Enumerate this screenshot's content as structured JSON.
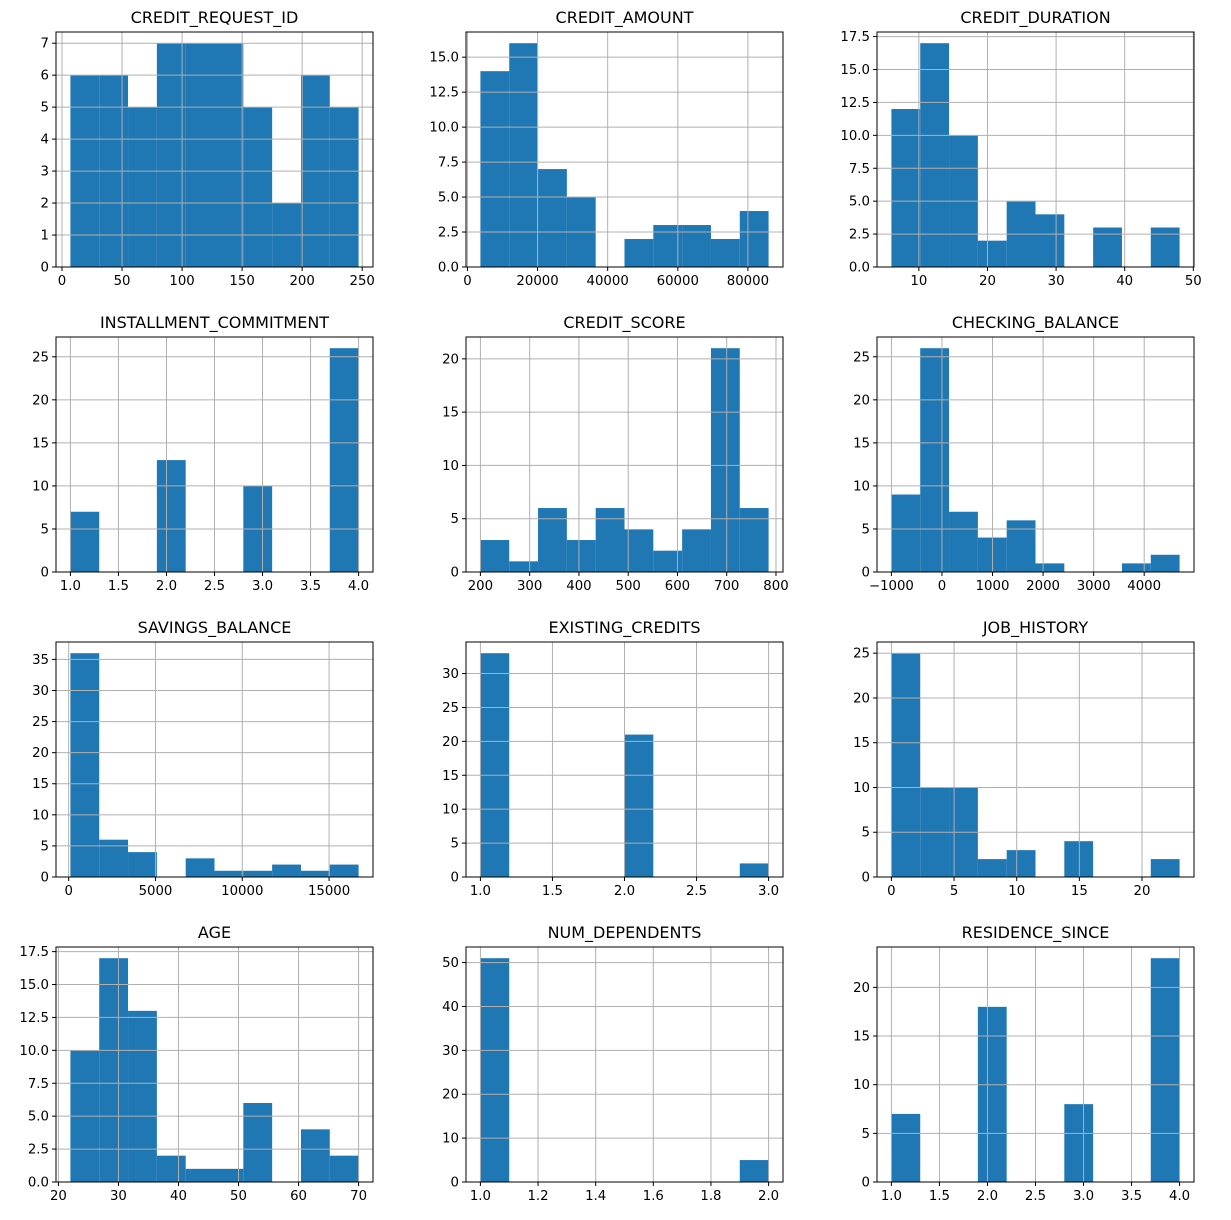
{
  "figure": {
    "background": "#ffffff",
    "bar_color": "#1f77b4",
    "grid_color": "#b0b0b0",
    "spine_color": "#000000",
    "grid_on": true,
    "layout": {
      "rows": 4,
      "cols": 3
    },
    "total_records": 56
  },
  "chart_data": [
    {
      "type": "bar",
      "subtype": "histogram",
      "title": "CREDIT_REQUEST_ID",
      "bin_edges": [
        7,
        31,
        55,
        79,
        103,
        127,
        151,
        175,
        199,
        223,
        247
      ],
      "counts": [
        6,
        6,
        5,
        7,
        7,
        7,
        5,
        2,
        6,
        5
      ],
      "x_ticks": [
        0,
        50,
        100,
        150,
        200,
        250
      ],
      "x_tick_labels": [
        "0",
        "50",
        "100",
        "150",
        "200",
        "250"
      ],
      "y_ticks": [
        0,
        1,
        2,
        3,
        4,
        5,
        6,
        7
      ],
      "y_tick_labels": [
        "0",
        "1",
        "2",
        "3",
        "4",
        "5",
        "6",
        "7"
      ],
      "xlim": [
        -5,
        259
      ],
      "ylim": [
        0,
        7.35
      ]
    },
    {
      "type": "bar",
      "subtype": "histogram",
      "title": "CREDIT_AMOUNT",
      "bin_edges": [
        3700,
        11920,
        20140,
        28360,
        36580,
        44800,
        53020,
        61240,
        69460,
        77680,
        85900
      ],
      "counts": [
        14,
        16,
        7,
        5,
        0,
        2,
        3,
        3,
        2,
        4
      ],
      "x_ticks": [
        0,
        20000,
        40000,
        60000,
        80000
      ],
      "x_tick_labels": [
        "0",
        "20000",
        "40000",
        "60000",
        "80000"
      ],
      "y_ticks": [
        0,
        2.5,
        5,
        7.5,
        10,
        12.5,
        15
      ],
      "y_tick_labels": [
        "0.0",
        "2.5",
        "5.0",
        "7.5",
        "10.0",
        "12.5",
        "15.0"
      ],
      "xlim": [
        -410,
        90010
      ],
      "ylim": [
        0,
        16.8
      ]
    },
    {
      "type": "bar",
      "subtype": "histogram",
      "title": "CREDIT_DURATION",
      "bin_edges": [
        6,
        10.2,
        14.4,
        18.6,
        22.8,
        27,
        31.2,
        35.4,
        39.6,
        43.8,
        48
      ],
      "counts": [
        12,
        17,
        10,
        2,
        5,
        4,
        0,
        3,
        0,
        3
      ],
      "x_ticks": [
        10,
        20,
        30,
        40,
        50
      ],
      "x_tick_labels": [
        "10",
        "20",
        "30",
        "40",
        "50"
      ],
      "y_ticks": [
        0,
        2.5,
        5,
        7.5,
        10,
        12.5,
        15,
        17.5
      ],
      "y_tick_labels": [
        "0.0",
        "2.5",
        "5.0",
        "7.5",
        "10.0",
        "12.5",
        "15.0",
        "17.5"
      ],
      "xlim": [
        3.9,
        50.1
      ],
      "ylim": [
        0,
        17.85
      ]
    },
    {
      "type": "bar",
      "subtype": "histogram",
      "title": "INSTALLMENT_COMMITMENT",
      "bin_edges": [
        1,
        1.3,
        1.6,
        1.9,
        2.2,
        2.5,
        2.8,
        3.1,
        3.4,
        3.7,
        4
      ],
      "counts": [
        7,
        0,
        0,
        13,
        0,
        0,
        10,
        0,
        0,
        26
      ],
      "x_ticks": [
        1,
        1.5,
        2,
        2.5,
        3,
        3.5,
        4
      ],
      "x_tick_labels": [
        "1.0",
        "1.5",
        "2.0",
        "2.5",
        "3.0",
        "3.5",
        "4.0"
      ],
      "y_ticks": [
        0,
        5,
        10,
        15,
        20,
        25
      ],
      "y_tick_labels": [
        "0",
        "5",
        "10",
        "15",
        "20",
        "25"
      ],
      "xlim": [
        0.85,
        4.15
      ],
      "ylim": [
        0,
        27.3
      ]
    },
    {
      "type": "bar",
      "subtype": "histogram",
      "title": "CREDIT_SCORE",
      "bin_edges": [
        200,
        258.5,
        317,
        375.5,
        434,
        492.5,
        551,
        609.5,
        668,
        726.5,
        785
      ],
      "counts": [
        3,
        1,
        6,
        3,
        6,
        4,
        2,
        4,
        21,
        6
      ],
      "x_ticks": [
        200,
        300,
        400,
        500,
        600,
        700,
        800
      ],
      "x_tick_labels": [
        "200",
        "300",
        "400",
        "500",
        "600",
        "700",
        "800"
      ],
      "y_ticks": [
        0,
        5,
        10,
        15,
        20
      ],
      "y_tick_labels": [
        "0",
        "5",
        "10",
        "15",
        "20"
      ],
      "xlim": [
        170.75,
        814.25
      ],
      "ylim": [
        0,
        22.05
      ]
    },
    {
      "type": "bar",
      "subtype": "histogram",
      "title": "CHECKING_BALANCE",
      "bin_edges": [
        -1000,
        -430,
        140,
        710,
        1280,
        1850,
        2420,
        2990,
        3560,
        4130,
        4700
      ],
      "counts": [
        9,
        26,
        7,
        4,
        6,
        1,
        0,
        0,
        1,
        2
      ],
      "x_ticks": [
        -1000,
        0,
        1000,
        2000,
        3000,
        4000
      ],
      "x_tick_labels": [
        "−1000",
        "0",
        "1000",
        "2000",
        "3000",
        "4000"
      ],
      "y_ticks": [
        0,
        5,
        10,
        15,
        20,
        25
      ],
      "y_tick_labels": [
        "0",
        "5",
        "10",
        "15",
        "20",
        "25"
      ],
      "xlim": [
        -1285,
        4985
      ],
      "ylim": [
        0,
        27.3
      ]
    },
    {
      "type": "bar",
      "subtype": "histogram",
      "title": "SAVINGS_BALANCE",
      "bin_edges": [
        100,
        1760,
        3420,
        5080,
        6740,
        8400,
        10060,
        11720,
        13380,
        15040,
        16700
      ],
      "counts": [
        36,
        6,
        4,
        0,
        3,
        1,
        1,
        2,
        1,
        2
      ],
      "x_ticks": [
        0,
        5000,
        10000,
        15000
      ],
      "x_tick_labels": [
        "0",
        "5000",
        "10000",
        "15000"
      ],
      "y_ticks": [
        0,
        5,
        10,
        15,
        20,
        25,
        30,
        35
      ],
      "y_tick_labels": [
        "0",
        "5",
        "10",
        "15",
        "20",
        "25",
        "30",
        "35"
      ],
      "xlim": [
        -730,
        17530
      ],
      "ylim": [
        0,
        37.8
      ]
    },
    {
      "type": "bar",
      "subtype": "histogram",
      "title": "EXISTING_CREDITS",
      "bin_edges": [
        1,
        1.2,
        1.4,
        1.6,
        1.8,
        2,
        2.2,
        2.4,
        2.6,
        2.8,
        3
      ],
      "counts": [
        33,
        0,
        0,
        0,
        0,
        21,
        0,
        0,
        0,
        2
      ],
      "x_ticks": [
        1,
        1.5,
        2,
        2.5,
        3
      ],
      "x_tick_labels": [
        "1.0",
        "1.5",
        "2.0",
        "2.5",
        "3.0"
      ],
      "y_ticks": [
        0,
        5,
        10,
        15,
        20,
        25,
        30
      ],
      "y_tick_labels": [
        "0",
        "5",
        "10",
        "15",
        "20",
        "25",
        "30"
      ],
      "xlim": [
        0.9,
        3.1
      ],
      "ylim": [
        0,
        34.65
      ]
    },
    {
      "type": "bar",
      "subtype": "histogram",
      "title": "JOB_HISTORY",
      "bin_edges": [
        0,
        2.3,
        4.6,
        6.9,
        9.2,
        11.5,
        13.8,
        16.1,
        18.4,
        20.7,
        23
      ],
      "counts": [
        25,
        10,
        10,
        2,
        3,
        0,
        4,
        0,
        0,
        2
      ],
      "x_ticks": [
        0,
        5,
        10,
        15,
        20
      ],
      "x_tick_labels": [
        "0",
        "5",
        "10",
        "15",
        "20"
      ],
      "y_ticks": [
        0,
        5,
        10,
        15,
        20,
        25
      ],
      "y_tick_labels": [
        "0",
        "5",
        "10",
        "15",
        "20",
        "25"
      ],
      "xlim": [
        -1.15,
        24.15
      ],
      "ylim": [
        0,
        26.25
      ]
    },
    {
      "type": "bar",
      "subtype": "histogram",
      "title": "AGE",
      "bin_edges": [
        22,
        26.8,
        31.6,
        36.4,
        41.2,
        46,
        50.8,
        55.6,
        60.4,
        65.2,
        70
      ],
      "counts": [
        10,
        17,
        13,
        2,
        1,
        1,
        6,
        0,
        4,
        2
      ],
      "x_ticks": [
        20,
        30,
        40,
        50,
        60,
        70
      ],
      "x_tick_labels": [
        "20",
        "30",
        "40",
        "50",
        "60",
        "70"
      ],
      "y_ticks": [
        0,
        2.5,
        5,
        7.5,
        10,
        12.5,
        15,
        17.5
      ],
      "y_tick_labels": [
        "0.0",
        "2.5",
        "5.0",
        "7.5",
        "10.0",
        "12.5",
        "15.0",
        "17.5"
      ],
      "xlim": [
        19.6,
        72.4
      ],
      "ylim": [
        0,
        17.85
      ]
    },
    {
      "type": "bar",
      "subtype": "histogram",
      "title": "NUM_DEPENDENTS",
      "bin_edges": [
        1,
        1.1,
        1.2,
        1.3,
        1.4,
        1.5,
        1.6,
        1.7,
        1.8,
        1.9,
        2
      ],
      "counts": [
        51,
        0,
        0,
        0,
        0,
        0,
        0,
        0,
        0,
        5
      ],
      "x_ticks": [
        1,
        1.2,
        1.4,
        1.6,
        1.8,
        2
      ],
      "x_tick_labels": [
        "1.0",
        "1.2",
        "1.4",
        "1.6",
        "1.8",
        "2.0"
      ],
      "y_ticks": [
        0,
        10,
        20,
        30,
        40,
        50
      ],
      "y_tick_labels": [
        "0",
        "10",
        "20",
        "30",
        "40",
        "50"
      ],
      "xlim": [
        0.95,
        2.05
      ],
      "ylim": [
        0,
        53.55
      ]
    },
    {
      "type": "bar",
      "subtype": "histogram",
      "title": "RESIDENCE_SINCE",
      "bin_edges": [
        1,
        1.3,
        1.6,
        1.9,
        2.2,
        2.5,
        2.8,
        3.1,
        3.4,
        3.7,
        4
      ],
      "counts": [
        7,
        0,
        0,
        18,
        0,
        0,
        8,
        0,
        0,
        23
      ],
      "x_ticks": [
        1,
        1.5,
        2,
        2.5,
        3,
        3.5,
        4
      ],
      "x_tick_labels": [
        "1.0",
        "1.5",
        "2.0",
        "2.5",
        "3.0",
        "3.5",
        "4.0"
      ],
      "y_ticks": [
        0,
        5,
        10,
        15,
        20
      ],
      "y_tick_labels": [
        "0",
        "5",
        "10",
        "15",
        "20"
      ],
      "xlim": [
        0.85,
        4.15
      ],
      "ylim": [
        0,
        24.15
      ]
    }
  ]
}
